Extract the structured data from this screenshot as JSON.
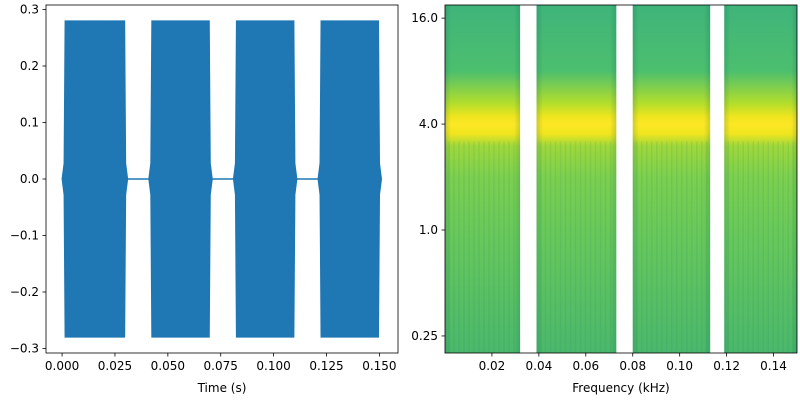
{
  "chart_data": [
    {
      "type": "line",
      "title": "",
      "xlabel": "Time (s)",
      "ylabel": "",
      "xlim": [
        -0.0076,
        0.1588
      ],
      "ylim": [
        -0.308,
        0.308
      ],
      "xticks": [
        0.0,
        0.025,
        0.05,
        0.075,
        0.1,
        0.125,
        0.15
      ],
      "xtick_labels": [
        "0.000",
        "0.025",
        "0.050",
        "0.075",
        "0.100",
        "0.125",
        "0.150"
      ],
      "yticks": [
        -0.3,
        -0.2,
        -0.1,
        0.0,
        0.1,
        0.2,
        0.3
      ],
      "ytick_labels": [
        "−0.3",
        "−0.2",
        "−0.1",
        "0.0",
        "0.1",
        "0.2",
        "0.3"
      ],
      "grid": false,
      "series_color": "#1f77b4",
      "signal": {
        "description_units": "seconds",
        "peak_amplitude": 0.28,
        "bursts": [
          {
            "start": 0.0,
            "end": 0.031
          },
          {
            "start": 0.041,
            "end": 0.071
          },
          {
            "start": 0.081,
            "end": 0.111
          },
          {
            "start": 0.121,
            "end": 0.151
          }
        ]
      }
    },
    {
      "type": "heatmap",
      "title": "",
      "xlabel": "Frequency (kHz)",
      "ylabel": "",
      "xlim": [
        0.0,
        0.15
      ],
      "ylim": [
        0.2,
        19.0
      ],
      "yscale": "log2",
      "xticks": [
        0.02,
        0.04,
        0.06,
        0.08,
        0.1,
        0.12,
        0.14
      ],
      "xtick_labels": [
        "0.02",
        "0.04",
        "0.06",
        "0.08",
        "0.10",
        "0.12",
        "0.14"
      ],
      "yticks": [
        0.25,
        1.0,
        4.0,
        16.0
      ],
      "ytick_labels": [
        "0.25",
        "1.0",
        "4.0",
        "16.0"
      ],
      "grid": false,
      "colormap": "viridis",
      "peak_frequency": 4.0,
      "blocks": [
        {
          "start": 0.0,
          "end": 0.032
        },
        {
          "start": 0.039,
          "end": 0.073
        },
        {
          "start": 0.08,
          "end": 0.113
        },
        {
          "start": 0.119,
          "end": 0.15
        }
      ]
    }
  ]
}
